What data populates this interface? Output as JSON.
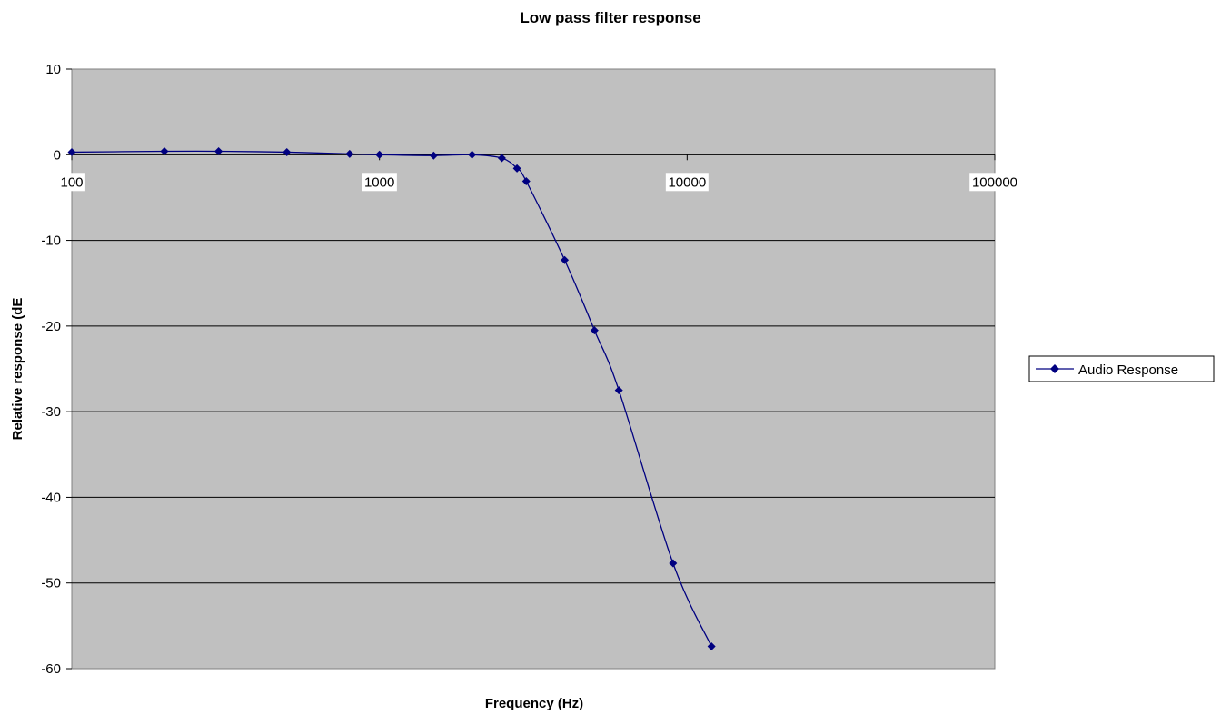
{
  "chart_data": {
    "type": "line",
    "title": "Low pass filter response",
    "xlabel": "Frequency (Hz)",
    "ylabel": "Relative response (dE",
    "x_scale": "log",
    "xlim": [
      100,
      100000
    ],
    "ylim": [
      -60,
      10
    ],
    "x_ticks": [
      100,
      1000,
      10000,
      100000
    ],
    "x_tick_labels": [
      "100",
      "1000",
      "10000",
      "100000"
    ],
    "y_ticks": [
      10,
      0,
      -10,
      -20,
      -30,
      -40,
      -50,
      -60
    ],
    "y_tick_labels": [
      "10",
      "0",
      "-10",
      "-20",
      "-30",
      "-40",
      "-50",
      "-60"
    ],
    "grid": "horizontal major gridlines",
    "legend": "right",
    "colors": {
      "plot_background": "#c0c0c0",
      "series": "#000080",
      "gridline": "#000000"
    },
    "series": [
      {
        "name": "Audio Response",
        "marker": "diamond",
        "x": [
          100,
          200,
          300,
          500,
          800,
          1000,
          1500,
          2000,
          2500,
          2800,
          3000,
          4000,
          5000,
          6000,
          9000,
          12000
        ],
        "y": [
          0.3,
          0.4,
          0.4,
          0.3,
          0.1,
          0.0,
          -0.1,
          0.0,
          -0.4,
          -1.6,
          -3.1,
          -12.3,
          -20.5,
          -27.5,
          -47.7,
          -57.4
        ]
      }
    ]
  }
}
